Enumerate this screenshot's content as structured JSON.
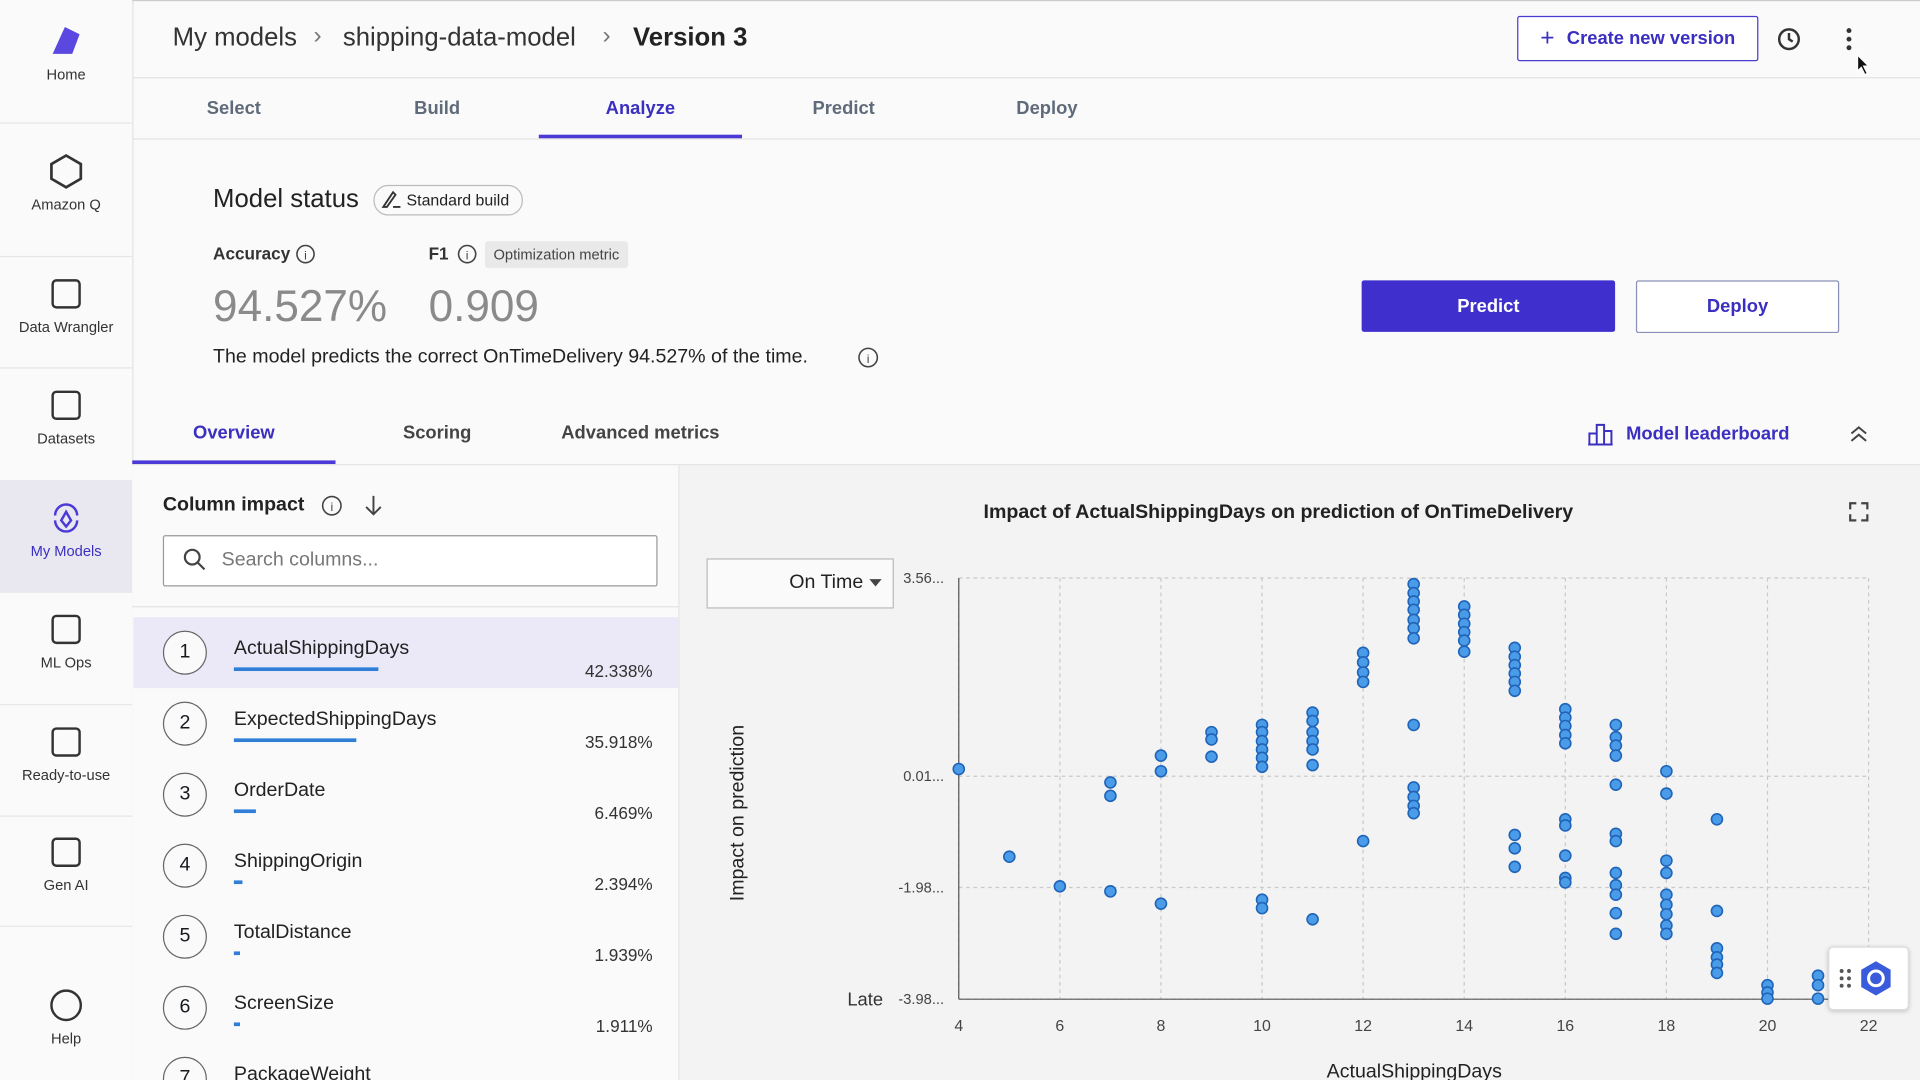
{
  "sidebar": {
    "items": [
      "Home",
      "Amazon Q",
      "Data Wrangler",
      "Datasets",
      "My Models",
      "ML Ops",
      "Ready-to-use",
      "Gen AI",
      "Help"
    ],
    "active": "My Models"
  },
  "breadcrumb": [
    "My models",
    "shipping-data-model",
    "Version 3"
  ],
  "header": {
    "create_button": "Create new version"
  },
  "tabs": {
    "items": [
      "Select",
      "Build",
      "Analyze",
      "Predict",
      "Deploy"
    ],
    "active": "Analyze"
  },
  "model_status": {
    "title": "Model status",
    "badge": "Standard build",
    "accuracy_label": "Accuracy",
    "accuracy_value": "94.527%",
    "f1_label": "F1",
    "f1_badge": "Optimization metric",
    "f1_value": "0.909",
    "description": "The model predicts the correct OnTimeDelivery 94.527% of the time.",
    "predict_button": "Predict",
    "deploy_button": "Deploy"
  },
  "subtabs": {
    "items": [
      "Overview",
      "Scoring",
      "Advanced metrics"
    ],
    "active": "Overview",
    "leaderboard": "Model leaderboard"
  },
  "column_impact": {
    "title": "Column impact",
    "search_placeholder": "Search columns...",
    "rows": [
      {
        "rank": "1",
        "name": "ActualShippingDays",
        "percent": "42.338%"
      },
      {
        "rank": "2",
        "name": "ExpectedShippingDays",
        "percent": "35.918%"
      },
      {
        "rank": "3",
        "name": "OrderDate",
        "percent": "6.469%"
      },
      {
        "rank": "4",
        "name": "ShippingOrigin",
        "percent": "2.394%"
      },
      {
        "rank": "5",
        "name": "TotalDistance",
        "percent": "1.939%"
      },
      {
        "rank": "6",
        "name": "ScreenSize",
        "percent": "1.911%"
      },
      {
        "rank": "7",
        "name": "PackageWeight"
      }
    ]
  },
  "chart_controls": {
    "class_selector": "On Time"
  },
  "chart_data": {
    "type": "scatter",
    "title": "Impact of ActualShippingDays on prediction of OnTimeDelivery",
    "x_label": "ActualShippingDays",
    "y_label": "Impact on prediction",
    "annotation": "Late",
    "xlim": [
      4,
      22
    ],
    "xticks": [
      4,
      6,
      8,
      10,
      12,
      14,
      16,
      18,
      20,
      22
    ],
    "ylim": [
      -3.98,
      3.56
    ],
    "yticks": [
      {
        "value": -3.98,
        "label": "-3.98..."
      },
      {
        "value": -1.98,
        "label": "-1.98..."
      },
      {
        "value": 0.01,
        "label": "0.01..."
      },
      {
        "value": 3.56,
        "label": "3.56..."
      }
    ],
    "grid": true,
    "series": [
      {
        "color": "#4a9be8",
        "x": [
          4,
          5,
          6,
          7,
          7,
          7,
          8,
          8,
          8,
          9,
          9,
          9,
          10,
          10,
          10,
          10,
          10,
          10,
          10,
          10,
          11,
          11,
          11,
          11,
          11,
          11,
          11,
          12,
          12,
          12,
          12,
          12,
          13,
          13,
          13,
          13,
          13,
          13,
          13,
          13,
          13,
          13,
          13,
          13,
          14,
          14,
          14,
          14,
          14,
          14,
          15,
          15,
          15,
          15,
          15,
          15,
          15,
          15,
          15,
          16,
          16,
          16,
          16,
          16,
          16,
          16,
          16,
          16,
          16,
          17,
          17,
          17,
          17,
          17,
          17,
          17,
          17,
          17,
          17,
          17,
          17,
          18,
          18,
          18,
          18,
          18,
          18,
          18,
          18,
          18,
          19,
          19,
          19,
          19,
          19,
          19,
          20,
          20,
          20,
          21,
          21,
          21
        ],
        "values": [
          0.14,
          -1.43,
          -1.96,
          -0.1,
          -0.34,
          -2.05,
          0.38,
          0.1,
          -2.27,
          0.8,
          0.67,
          0.36,
          0.93,
          0.8,
          0.64,
          0.49,
          0.34,
          0.18,
          -2.2,
          -2.35,
          1.15,
          1.0,
          0.8,
          0.64,
          0.49,
          0.21,
          -2.55,
          2.22,
          2.05,
          1.87,
          1.7,
          -1.15,
          3.45,
          3.29,
          3.14,
          2.99,
          2.81,
          2.66,
          2.48,
          0.93,
          -0.19,
          -0.36,
          -0.52,
          -0.65,
          3.05,
          2.9,
          2.74,
          2.59,
          2.44,
          2.24,
          2.31,
          2.15,
          2.0,
          1.85,
          1.7,
          1.54,
          -1.04,
          -1.28,
          -1.61,
          1.21,
          1.06,
          0.91,
          0.75,
          0.6,
          -0.76,
          -0.87,
          -1.41,
          -1.81,
          -1.89,
          0.93,
          0.71,
          0.56,
          0.38,
          -0.14,
          -1.02,
          -1.15,
          -1.72,
          -1.94,
          -2.11,
          -2.44,
          -2.81,
          0.1,
          -0.3,
          -1.5,
          -1.72,
          -2.11,
          -2.29,
          -2.46,
          -2.66,
          -2.81,
          -0.76,
          -2.4,
          -3.07,
          -3.23,
          -3.36,
          -3.51,
          -3.73,
          -3.86,
          -3.97,
          -3.56,
          -3.73,
          -3.97
        ]
      }
    ]
  }
}
